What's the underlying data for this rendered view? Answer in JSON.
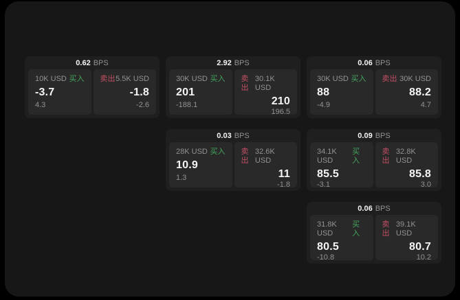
{
  "labels": {
    "bps": "BPS",
    "buy": "买入",
    "sell": "卖出"
  },
  "colors": {
    "surface": "#171718",
    "card": "#1f1f20",
    "panel": "#29292a",
    "buy": "#46a45c",
    "sell": "#c14f62",
    "text-primary": "#f5f5f5",
    "text-muted": "#939393"
  },
  "cards": [
    {
      "bps": "0.62",
      "buy": {
        "amount": "10K USD",
        "value": "-3.7",
        "sub": "4.3"
      },
      "sell": {
        "amount": "5.5K USD",
        "value": "-1.8",
        "sub": "-2.6"
      }
    },
    {
      "bps": "2.92",
      "buy": {
        "amount": "30K USD",
        "value": "201",
        "sub": "-188.1"
      },
      "sell": {
        "amount": "30.1K USD",
        "value": "210",
        "sub": "196.5"
      }
    },
    {
      "bps": "0.06",
      "buy": {
        "amount": "30K USD",
        "value": "88",
        "sub": "-4.9"
      },
      "sell": {
        "amount": "30K USD",
        "value": "88.2",
        "sub": "4.7"
      }
    },
    {
      "bps": "0.03",
      "buy": {
        "amount": "28K USD",
        "value": "10.9",
        "sub": "1.3"
      },
      "sell": {
        "amount": "32.6K USD",
        "value": "11",
        "sub": "-1.8"
      }
    },
    {
      "bps": "0.09",
      "buy": {
        "amount": "34.1K USD",
        "value": "85.5",
        "sub": "-3.1"
      },
      "sell": {
        "amount": "32.8K USD",
        "value": "85.8",
        "sub": "3.0"
      }
    },
    {
      "bps": "0.06",
      "buy": {
        "amount": "31.8K USD",
        "value": "80.5",
        "sub": "-10.8"
      },
      "sell": {
        "amount": "39.1K USD",
        "value": "80.7",
        "sub": "10.2"
      }
    }
  ]
}
